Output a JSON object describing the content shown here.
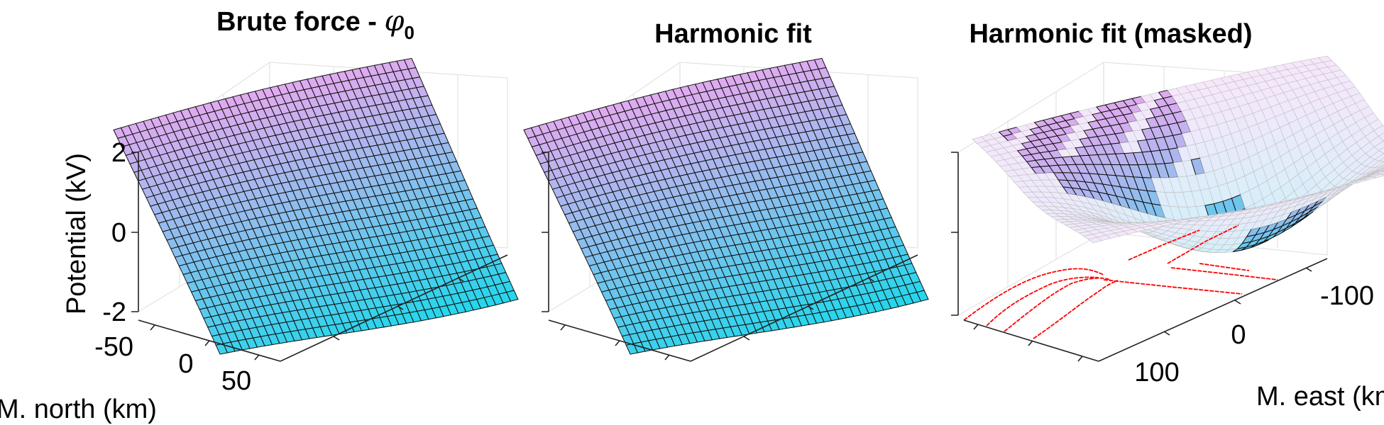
{
  "figure": {
    "panels": [
      {
        "title_text": "Brute force - ",
        "title_symbol": "φ",
        "title_subscript": "0"
      },
      {
        "title_text": "Harmonic fit"
      },
      {
        "title_text": "Harmonic fit (masked)"
      }
    ],
    "labels": {
      "z": "Potential (kV)",
      "north": "M. north (km)",
      "east": "M. east (km)"
    }
  },
  "colors": {
    "high": "#f3a6f0",
    "low": "#27d6ec",
    "mesh": "#111111",
    "trace": "#ff0000"
  },
  "chart_data": [
    {
      "type": "surface",
      "title": "Brute force - φ0",
      "zlabel": "Potential (kV)",
      "ylabel": "M. north (km)",
      "zticks": [
        "2",
        "0",
        "-2"
      ],
      "yticks": [
        "-50",
        "0",
        "50"
      ],
      "zlim": [
        -2.2,
        2.2
      ],
      "north_range": [
        -80,
        80
      ],
      "east_range": [
        -150,
        150
      ],
      "z_north_end": 1.7,
      "z_south_end": -2.0,
      "colormap": "cool (magenta to cyan)"
    },
    {
      "type": "surface",
      "title": "Harmonic fit",
      "zlim": [
        -2.2,
        2.2
      ],
      "north_range": [
        -80,
        80
      ],
      "east_range": [
        -150,
        150
      ],
      "z_north_end": 1.7,
      "z_south_end": -2.0,
      "colormap": "cool (magenta to cyan)"
    },
    {
      "type": "surface",
      "title": "Harmonic fit (masked)",
      "xlabel": "M. east (km)",
      "xticks": [
        "-100",
        "0",
        "100"
      ],
      "zlim": [
        -2.2,
        2.2
      ],
      "north_range": [
        -80,
        80
      ],
      "east_range": [
        -150,
        150
      ],
      "masked": true,
      "overlay": "red measurement traces on floor"
    }
  ]
}
